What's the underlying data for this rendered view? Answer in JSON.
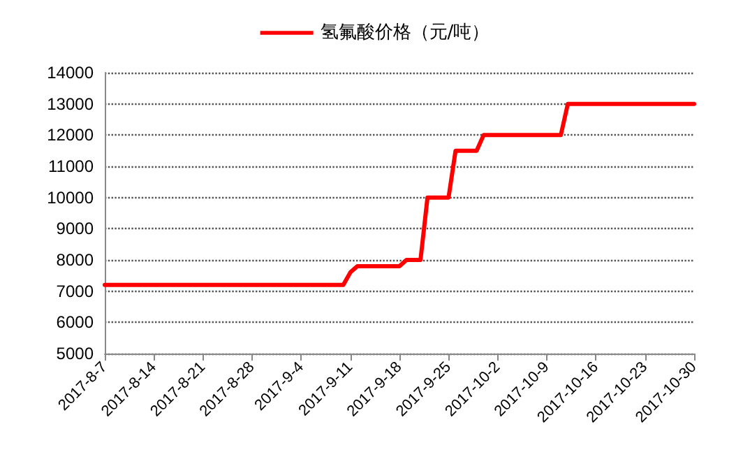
{
  "chart_data": {
    "type": "line",
    "x": [
      "2017-08-07",
      "2017-09-10",
      "2017-09-11",
      "2017-09-12",
      "2017-09-18",
      "2017-09-19",
      "2017-09-21",
      "2017-09-22",
      "2017-09-25",
      "2017-09-26",
      "2017-09-29",
      "2017-09-30",
      "2017-10-11",
      "2017-10-12",
      "2017-10-30"
    ],
    "series": [
      {
        "name": "氢氟酸价格（元/吨）",
        "color": "#ff0000",
        "values": [
          7200,
          7200,
          7600,
          7800,
          7800,
          8000,
          8000,
          10000,
          10000,
          11500,
          11500,
          12000,
          12000,
          13000,
          13000
        ]
      }
    ],
    "xlim": [
      "2017-08-07",
      "2017-10-30"
    ],
    "xticks": [
      {
        "value": "2017-08-07",
        "label": "2017-8-7"
      },
      {
        "value": "2017-08-14",
        "label": "2017-8-14"
      },
      {
        "value": "2017-08-21",
        "label": "2017-8-21"
      },
      {
        "value": "2017-08-28",
        "label": "2017-8-28"
      },
      {
        "value": "2017-09-04",
        "label": "2017-9-4"
      },
      {
        "value": "2017-09-11",
        "label": "2017-9-11"
      },
      {
        "value": "2017-09-18",
        "label": "2017-9-18"
      },
      {
        "value": "2017-09-25",
        "label": "2017-9-25"
      },
      {
        "value": "2017-10-02",
        "label": "2017-10-2"
      },
      {
        "value": "2017-10-09",
        "label": "2017-10-9"
      },
      {
        "value": "2017-10-16",
        "label": "2017-10-16"
      },
      {
        "value": "2017-10-23",
        "label": "2017-10-23"
      },
      {
        "value": "2017-10-30",
        "label": "2017-10-30"
      }
    ],
    "ylim": [
      5000,
      14000
    ],
    "yticks": [
      5000,
      6000,
      7000,
      8000,
      9000,
      10000,
      11000,
      12000,
      13000,
      14000
    ],
    "grid": "y",
    "legend": "top",
    "marker": "none",
    "line_style": "solid"
  }
}
